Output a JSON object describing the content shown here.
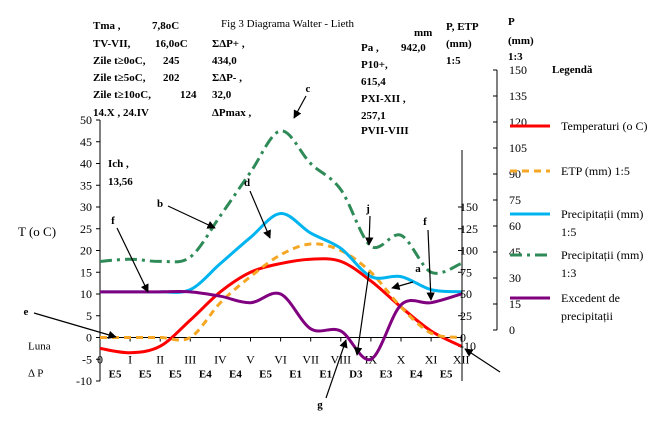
{
  "chart_data": {
    "type": "line",
    "title": "Fig 3 Diagrama Walter - Lieth",
    "ylabel": "T (o C)",
    "ylim": [
      -10,
      50
    ],
    "y_ticks": [
      "50",
      "45",
      "40",
      "35",
      "30",
      "25",
      "20",
      "15",
      "10",
      "5",
      "0",
      "-5",
      "-10"
    ],
    "months": [
      "0",
      "I",
      "II",
      "III",
      "IV",
      "V",
      "VI",
      "VII",
      "VIII",
      "IX",
      "X",
      "XI",
      "XII"
    ],
    "row_labels": {
      "luna": "Luna",
      "dp": "Δ P"
    },
    "e_codes": [
      "E5",
      "E5",
      "E5",
      "E4",
      "E4",
      "E5",
      "E1",
      "E1",
      "D3",
      "E3",
      "E4",
      "E5"
    ],
    "stats_left": [
      "Tma ,",
      "7,8oC",
      "TV-VII,",
      "16,0oC",
      "Zile t≥0oC,",
      "245",
      "Zile t≥5oC,",
      "202",
      "Zile t≥10oC,",
      "124",
      "14.X , 24.IV"
    ],
    "stats_mid": [
      "ΣΔP+ ,",
      "434,0",
      "ΣΔP- ,",
      "32,0",
      "ΔPmax ,"
    ],
    "stats_right": [
      "Pa ,",
      "942,0",
      "P10+,",
      "615,4",
      "PXI-XII ,",
      "257,1",
      "PVII-VIII"
    ],
    "ich": [
      "Ich ,",
      "13,56"
    ],
    "mm_label": "mm",
    "axis2_header": [
      "P, ETP",
      "(mm)",
      "1:5"
    ],
    "axis3_header": [
      "P",
      "(mm)",
      "1:3"
    ],
    "axis2_ticks": [
      "150",
      "125",
      "100",
      "75",
      "50",
      "25",
      "0",
      "-10"
    ],
    "axis3_ticks": [
      "150",
      "135",
      "120",
      "105",
      "90",
      "75",
      "60",
      "45",
      "30",
      "15",
      "0"
    ],
    "legend_title": "Legendă",
    "annotations": [
      "a",
      "b",
      "c",
      "d",
      "e",
      "f",
      "f",
      "g",
      "j"
    ],
    "series": [
      {
        "name": "Temperaturi (o C)",
        "color": "#ff0000",
        "style": "solid",
        "values": [
          -2.5,
          -3.5,
          -2.0,
          4.0,
          10.5,
          15.0,
          17.0,
          18.0,
          17.5,
          13.0,
          7.0,
          1.5,
          -2.0
        ]
      },
      {
        "name": "ETP (mm) 1:5",
        "color": "#f5a623",
        "style": "dashed",
        "values": [
          0,
          0,
          0,
          0,
          8.0,
          14.0,
          19.0,
          21.5,
          20.0,
          15.0,
          7.0,
          1.0,
          0
        ]
      },
      {
        "name": "Precipitații (mm) 1:5",
        "color": "#00b4f0",
        "style": "solid",
        "values": [
          10.5,
          10.5,
          10.5,
          11.0,
          17.0,
          23.0,
          28.5,
          24.0,
          20.5,
          14.0,
          14.0,
          11.0,
          10.5
        ]
      },
      {
        "name": "Precipitații (mm) 1:3",
        "color": "#2e8b57",
        "style": "dashdot",
        "values": [
          17.5,
          18.0,
          17.5,
          18.5,
          28.0,
          38.0,
          47.5,
          40.0,
          34.0,
          21.0,
          23.5,
          15.0,
          17.0
        ]
      },
      {
        "name": "Excedent de precipitații",
        "color": "#800080",
        "style": "solid",
        "values": [
          10.5,
          10.5,
          10.5,
          10.5,
          9.5,
          8.0,
          10.0,
          2.0,
          1.5,
          -5.0,
          7.5,
          8.0,
          10.0
        ]
      }
    ]
  }
}
